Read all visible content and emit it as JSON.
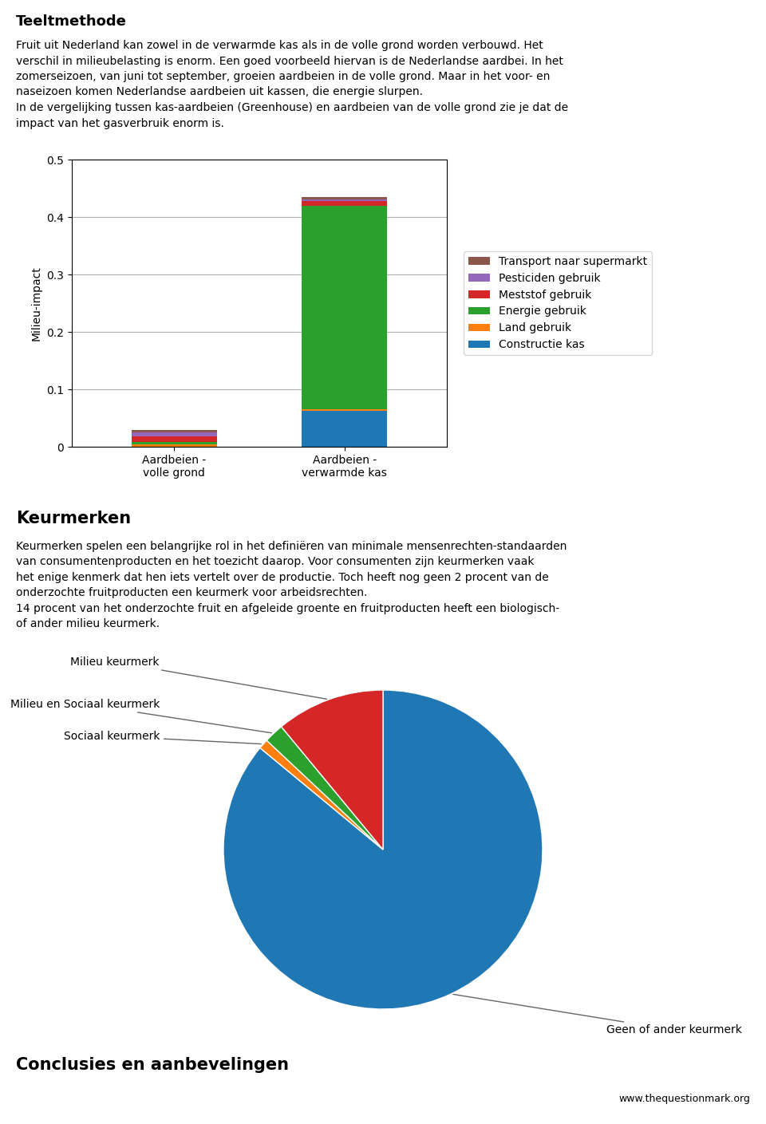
{
  "chart_data": [
    {
      "type": "bar",
      "title": "Teeltmethode",
      "subtitle": "Fruit uit Nederland kan zowel in de verwarmde kas als in de volle grond worden verbouwd. Het\nverschil in milieubelasting is enorm. Een goed voorbeeld hiervan is de Nederlandse aardbei. In het\nzomerseizoen, van juni tot september, groeien aardbeien in de volle grond. Maar in het voor- en\nnaseizoen komen Nederlandse aardbeien uit kassen, die energie slurpen.\nIn de vergelijking tussen kas-aardbeien (Greenhouse) en aardbeien van de volle grond zie je dat de\nimpact van het gasverbruik enorm is.",
      "categories": [
        "Aardbeien -\nvolle grond",
        "Aardbeien -\nverwarmde kas"
      ],
      "ylabel": "Milieu-impact",
      "ylim": [
        0,
        0.5
      ],
      "yticks": [
        0,
        0.1,
        0.2,
        0.3,
        0.4,
        0.5
      ],
      "grid": true,
      "stacked": true,
      "legend": "center left",
      "series": [
        {
          "name": "Constructie kas",
          "values": [
            0.0,
            0.062
          ]
        },
        {
          "name": "Land gebruik",
          "values": [
            0.004,
            0.003
          ]
        },
        {
          "name": "Energie gebruik",
          "values": [
            0.004,
            0.355
          ]
        },
        {
          "name": "Meststof gebruik",
          "values": [
            0.01,
            0.008
          ]
        },
        {
          "name": "Pesticiden gebruik",
          "values": [
            0.007,
            0.003
          ]
        },
        {
          "name": "Transport naar supermarkt",
          "values": [
            0.004,
            0.004
          ]
        }
      ]
    },
    {
      "type": "pie",
      "title": "Keurmerken",
      "subtitle": "Keurmerken spelen een belangrijke rol in het definiëren van minimale mensenrechten-standaarden\nvan consumentenproducten en het toezicht daarop. Voor consumenten zijn keurmerken vaak\nhet enige kenmerk dat hen iets vertelt over de productie. Toch heeft nog geen 2 procent van de\nonderzochte fruitproducten een keurmerk voor arbeidsrechten.\n14 procent van het onderzochte fruit en afgeleide groente en fruitproducten heeft een biologisch-\nof ander milieu keurmerk.",
      "categories": [
        "Geen of ander keurmerk",
        "Sociaal keurmerk",
        "Milieu en Sociaal keurmerk",
        "Milieu keurmerk"
      ],
      "values": [
        86,
        1,
        2,
        11
      ],
      "annotations": [
        "Conclusies en aanbevelingen",
        "www.thequestionmark.org"
      ]
    }
  ]
}
